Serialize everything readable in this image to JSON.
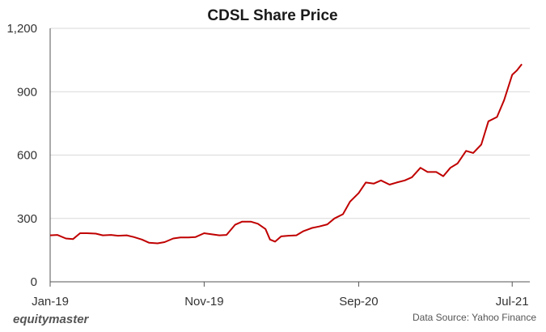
{
  "chart_data": {
    "type": "line",
    "title": "CDSL Share Price",
    "xlabel": "",
    "ylabel": "",
    "x_tick_labels": [
      "Jan-19",
      "Nov-19",
      "Sep-20",
      "Jul-21"
    ],
    "y_tick_labels": [
      "0",
      "300",
      "600",
      "900",
      "1,200"
    ],
    "ylim": [
      0,
      1200
    ],
    "xlim": [
      "2019-01-01",
      "2021-07-31"
    ],
    "grid": "horizontal",
    "colors": {
      "line": "#c00000"
    },
    "series": [
      {
        "x": [
          "2019-01-01",
          "2019-01-15",
          "2019-02-01",
          "2019-02-15",
          "2019-03-01",
          "2019-03-15",
          "2019-04-01",
          "2019-04-15",
          "2019-05-01",
          "2019-05-15",
          "2019-06-01",
          "2019-06-15",
          "2019-07-01",
          "2019-07-15",
          "2019-08-01",
          "2019-08-15",
          "2019-09-01",
          "2019-09-15",
          "2019-10-01",
          "2019-10-15",
          "2019-11-01",
          "2019-11-15",
          "2019-12-01",
          "2019-12-15",
          "2020-01-01",
          "2020-01-15",
          "2020-02-01",
          "2020-02-15",
          "2020-03-01",
          "2020-03-10",
          "2020-03-20",
          "2020-04-01",
          "2020-04-15",
          "2020-05-01",
          "2020-05-15",
          "2020-06-01",
          "2020-06-15",
          "2020-07-01",
          "2020-07-15",
          "2020-08-01",
          "2020-08-15",
          "2020-09-01",
          "2020-09-15",
          "2020-10-01",
          "2020-10-15",
          "2020-11-01",
          "2020-11-15",
          "2020-12-01",
          "2020-12-15",
          "2021-01-01",
          "2021-01-15",
          "2021-02-01",
          "2021-02-15",
          "2021-03-01",
          "2021-03-15",
          "2021-04-01",
          "2021-04-15",
          "2021-05-01",
          "2021-05-15",
          "2021-06-01",
          "2021-06-15",
          "2021-07-01",
          "2021-07-10",
          "2021-07-20"
        ],
        "y": [
          220,
          222,
          205,
          202,
          230,
          230,
          228,
          220,
          222,
          218,
          220,
          212,
          200,
          185,
          182,
          188,
          205,
          210,
          210,
          212,
          230,
          225,
          220,
          222,
          270,
          285,
          285,
          275,
          250,
          200,
          190,
          215,
          218,
          220,
          240,
          255,
          262,
          272,
          300,
          320,
          380,
          420,
          470,
          465,
          480,
          460,
          470,
          480,
          495,
          540,
          520,
          520,
          500,
          540,
          560,
          620,
          610,
          650,
          760,
          780,
          860,
          980,
          1000,
          1030
        ]
      }
    ]
  },
  "branding": {
    "logo_text": "equitymaster",
    "source": "Data Source: Yahoo Finance"
  }
}
